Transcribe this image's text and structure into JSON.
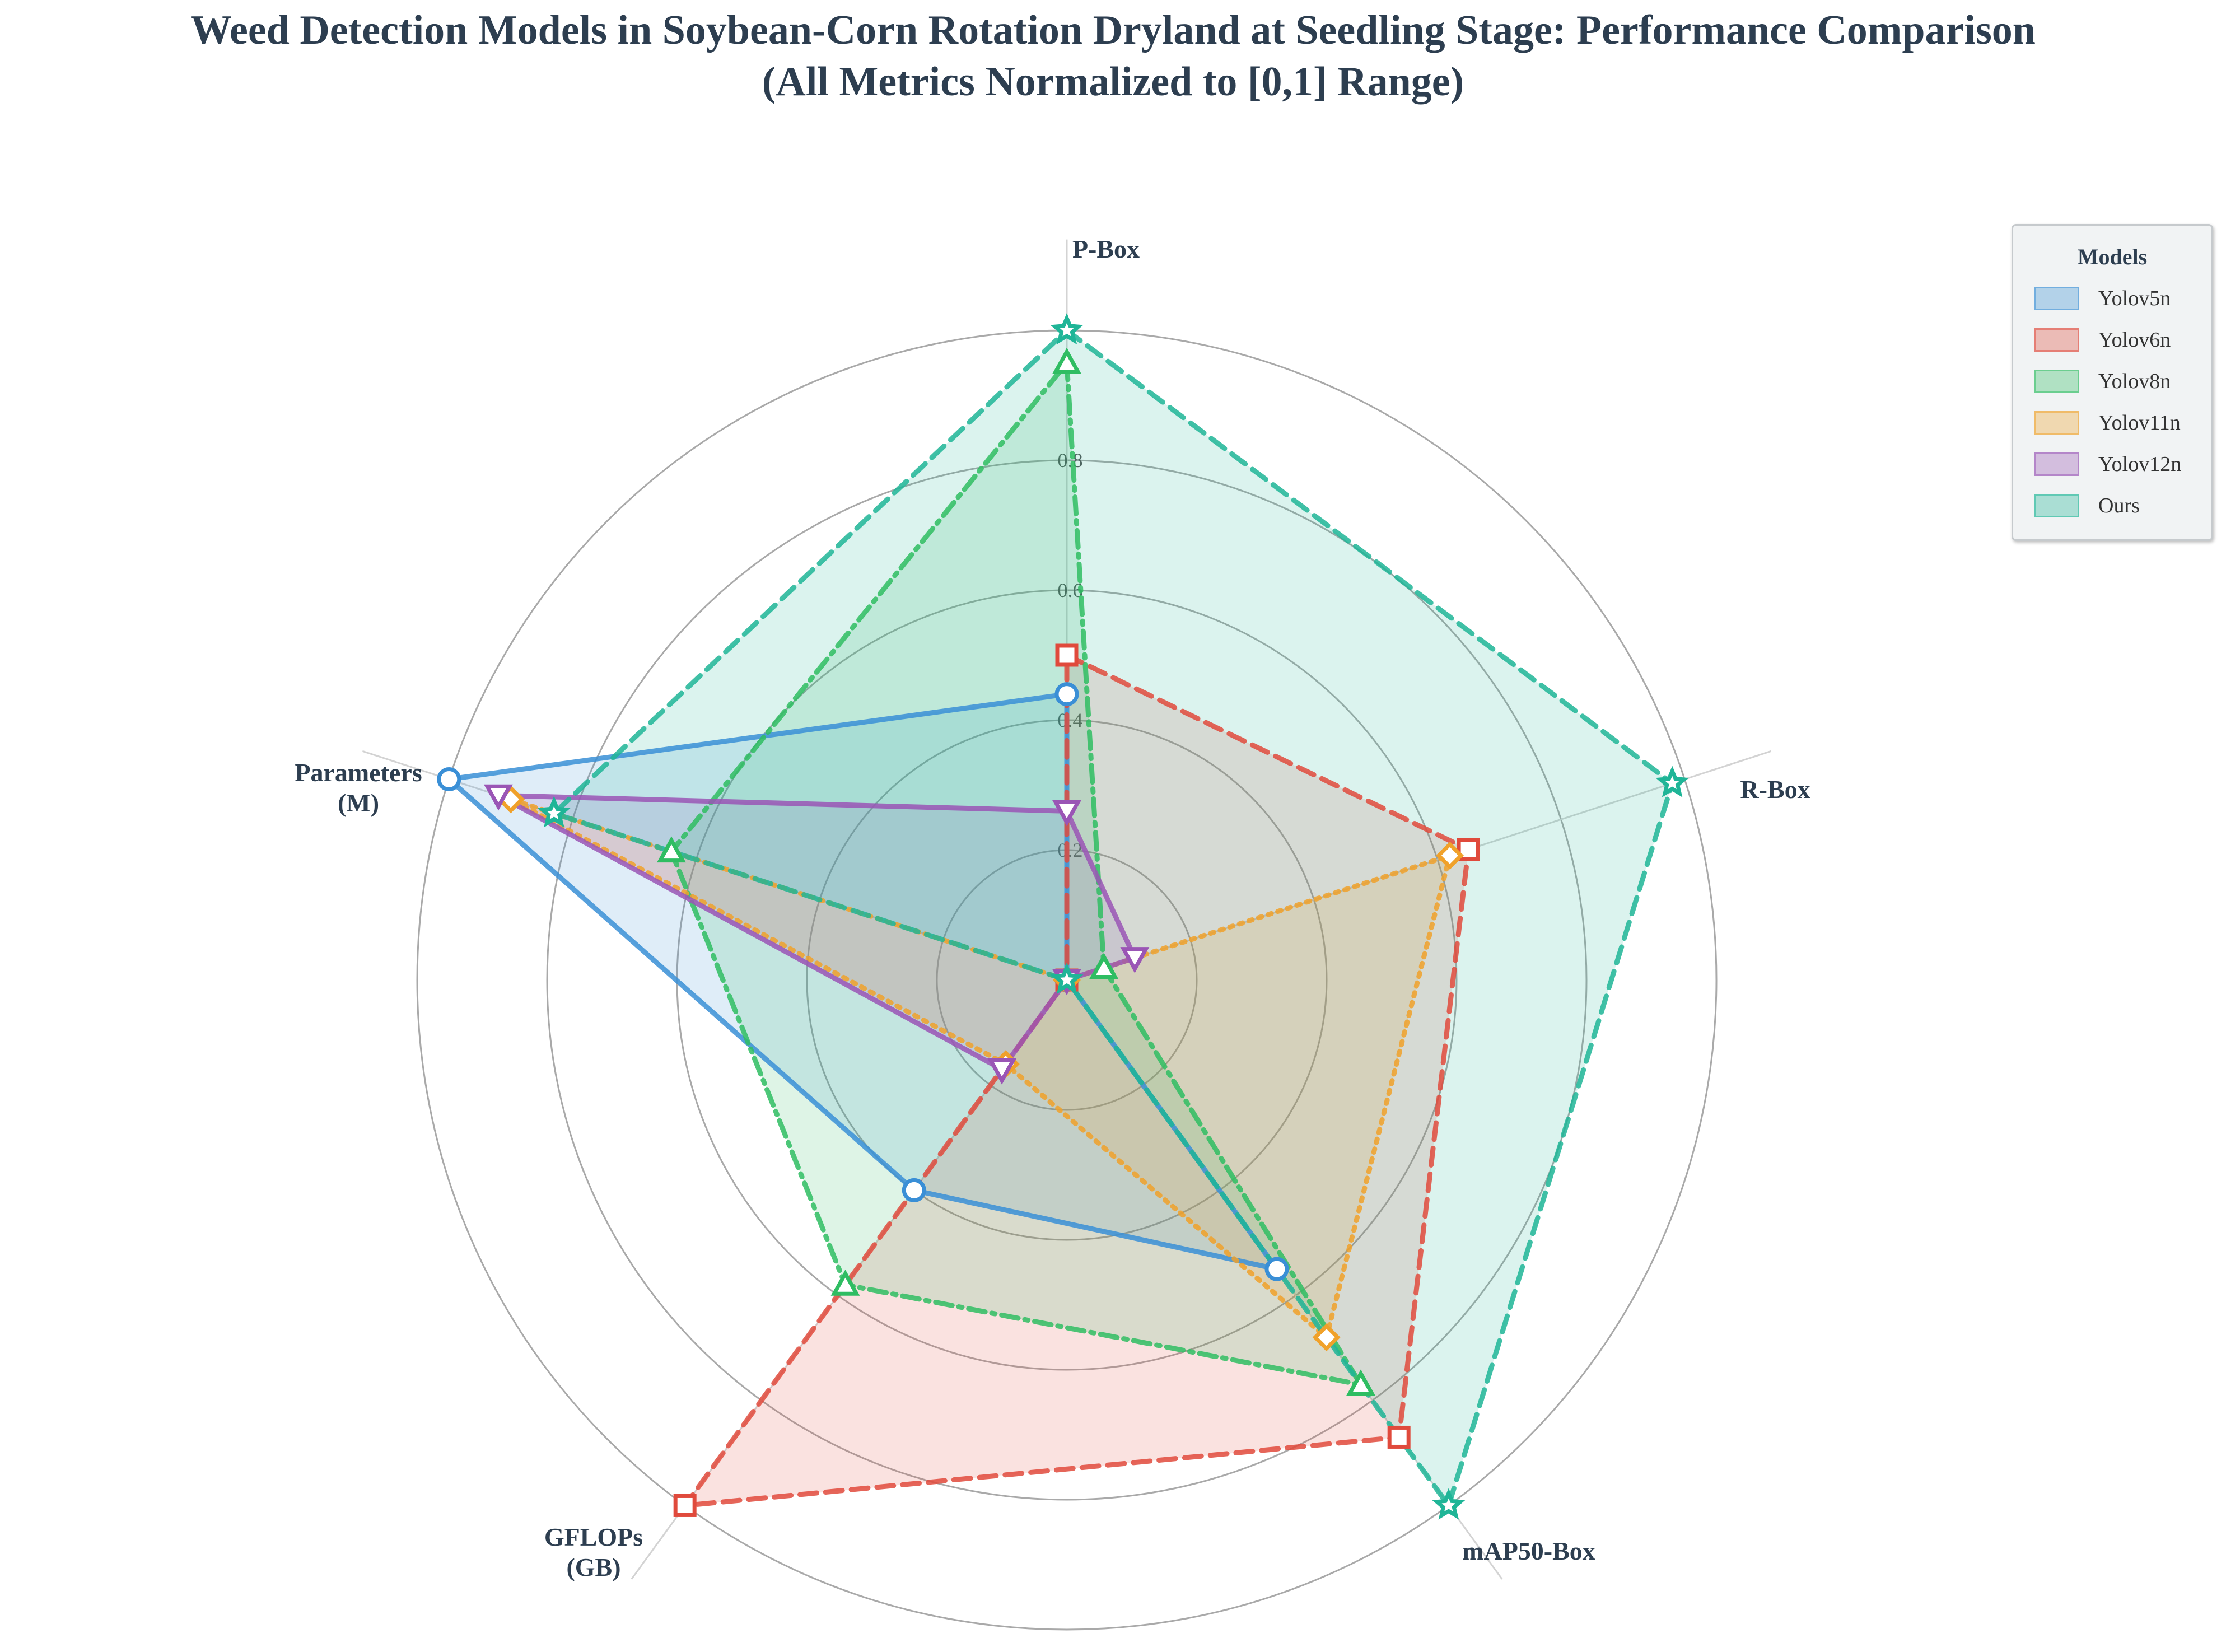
{
  "title": {
    "line1": "Weed Detection Models in Soybean-Corn Rotation Dryland at Seedling Stage: Performance Comparison",
    "line2": "(All Metrics Normalized to [0,1] Range)"
  },
  "chart_data": {
    "type": "radar",
    "axes": [
      "P-Box",
      "R-Box",
      "mAP50-Box",
      "GFLOPs\n(GB)",
      "Parameters\n(M)"
    ],
    "rlim": [
      0,
      1
    ],
    "radial_ticks": [
      0.2,
      0.4,
      0.6,
      0.8,
      1.0
    ],
    "radial_tick_labels": [
      "0.2",
      "0.4",
      "0.6",
      "0.8",
      "1"
    ],
    "grid": true,
    "legend": {
      "title": "Models",
      "position": "top-right"
    },
    "series": [
      {
        "name": "Yolov5n",
        "color": "#3a8fd6",
        "marker": "circle",
        "linestyle": "solid",
        "values": [
          0.44,
          0.0,
          0.55,
          0.4,
          1.0
        ]
      },
      {
        "name": "Yolov6n",
        "color": "#e04a3c",
        "marker": "square",
        "linestyle": "dashed",
        "values": [
          0.5,
          0.65,
          0.87,
          1.0,
          0.0
        ]
      },
      {
        "name": "Yolov8n",
        "color": "#2fbd62",
        "marker": "triangle-up",
        "linestyle": "dashdot",
        "values": [
          0.95,
          0.06,
          0.77,
          0.58,
          0.64
        ]
      },
      {
        "name": "Yolov11n",
        "color": "#f0a12a",
        "marker": "diamond",
        "linestyle": "dotted",
        "values": [
          0.0,
          0.62,
          0.68,
          0.16,
          0.9
        ]
      },
      {
        "name": "Yolov12n",
        "color": "#9a55b5",
        "marker": "triangle-down",
        "linestyle": "solid",
        "values": [
          0.26,
          0.11,
          0.0,
          0.17,
          0.92
        ]
      },
      {
        "name": "Ours",
        "color": "#1fb597",
        "marker": "star",
        "linestyle": "dashed",
        "values": [
          1.0,
          0.98,
          1.0,
          0.0,
          0.83
        ]
      }
    ]
  }
}
